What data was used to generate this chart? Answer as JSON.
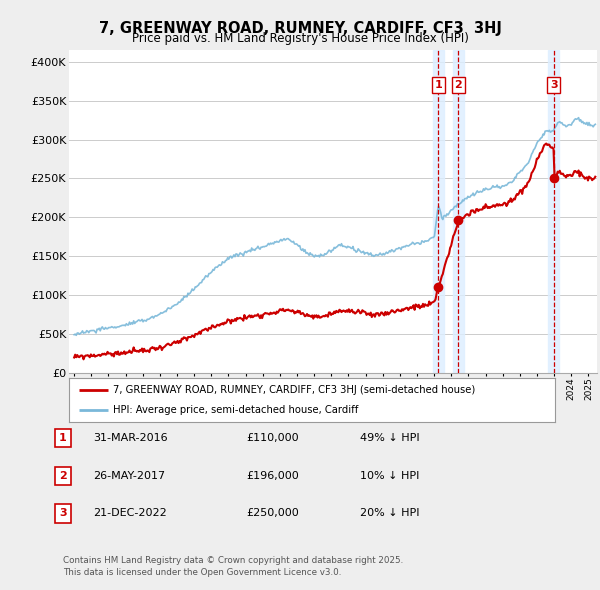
{
  "title": "7, GREENWAY ROAD, RUMNEY, CARDIFF, CF3  3HJ",
  "subtitle": "Price paid vs. HM Land Registry's House Price Index (HPI)",
  "ylabel_ticks": [
    "£0",
    "£50K",
    "£100K",
    "£150K",
    "£200K",
    "£250K",
    "£300K",
    "£350K",
    "£400K"
  ],
  "ytick_values": [
    0,
    50000,
    100000,
    150000,
    200000,
    250000,
    300000,
    350000,
    400000
  ],
  "ylim": [
    0,
    415000
  ],
  "xlim_start": 1994.7,
  "xlim_end": 2025.5,
  "hpi_color": "#7ab8d9",
  "price_color": "#cc0000",
  "dashed_color": "#cc0000",
  "shade_color": "#ddeeff",
  "transactions": [
    {
      "date": 2016.25,
      "price": 110000,
      "label": "1"
    },
    {
      "date": 2017.42,
      "price": 196000,
      "label": "2"
    },
    {
      "date": 2022.97,
      "price": 250000,
      "label": "3"
    }
  ],
  "legend_house_label": "7, GREENWAY ROAD, RUMNEY, CARDIFF, CF3 3HJ (semi-detached house)",
  "legend_hpi_label": "HPI: Average price, semi-detached house, Cardiff",
  "table_rows": [
    {
      "num": "1",
      "date": "31-MAR-2016",
      "price": "£110,000",
      "hpi": "49% ↓ HPI"
    },
    {
      "num": "2",
      "date": "26-MAY-2017",
      "price": "£196,000",
      "hpi": "10% ↓ HPI"
    },
    {
      "num": "3",
      "date": "21-DEC-2022",
      "price": "£250,000",
      "hpi": "20% ↓ HPI"
    }
  ],
  "footnote": "Contains HM Land Registry data © Crown copyright and database right 2025.\nThis data is licensed under the Open Government Licence v3.0.",
  "bg_color": "#eeeeee",
  "plot_bg_color": "#ffffff",
  "grid_color": "#cccccc"
}
